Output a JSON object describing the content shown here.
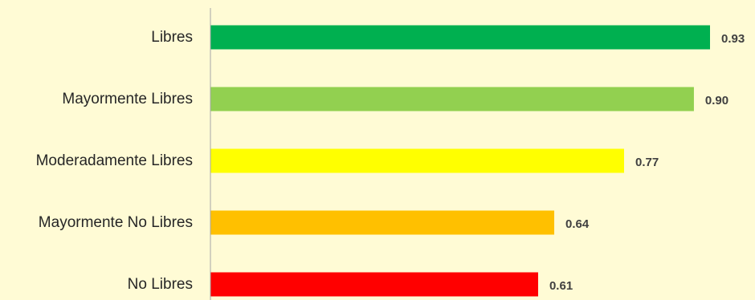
{
  "chart_data": {
    "type": "bar",
    "orientation": "horizontal",
    "title": "",
    "xlabel": "",
    "ylabel": "",
    "xlim": [
      0,
      0.93
    ],
    "grid": false,
    "legend": "none",
    "categories": [
      "Libres",
      "Mayormente Libres",
      "Moderadamente Libres",
      "Mayormente No Libres",
      "No Libres"
    ],
    "values": [
      0.93,
      0.9,
      0.77,
      0.64,
      0.61
    ],
    "value_labels": [
      "0.93",
      "0.90",
      "0.77",
      "0.64",
      "0.61"
    ],
    "colors": [
      "#00B050",
      "#92D050",
      "#FFFF00",
      "#FFC000",
      "#FF0000"
    ]
  },
  "background_color": "#FFFBD5",
  "axis_color": "#A6A6A6"
}
